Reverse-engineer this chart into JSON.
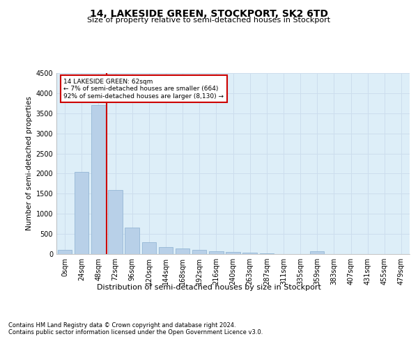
{
  "title": "14, LAKESIDE GREEN, STOCKPORT, SK2 6TD",
  "subtitle": "Size of property relative to semi-detached houses in Stockport",
  "xlabel": "Distribution of semi-detached houses by size in Stockport",
  "ylabel": "Number of semi-detached properties",
  "footnote1": "Contains HM Land Registry data © Crown copyright and database right 2024.",
  "footnote2": "Contains public sector information licensed under the Open Government Licence v3.0.",
  "annotation_line1": "14 LAKESIDE GREEN: 62sqm",
  "annotation_line2": "← 7% of semi-detached houses are smaller (664)",
  "annotation_line3": "92% of semi-detached houses are larger (8,130) →",
  "bar_color": "#b8d0e8",
  "bar_edge_color": "#8ab0d0",
  "vline_color": "#cc0000",
  "annotation_box_color": "#cc0000",
  "grid_color": "#ccdded",
  "bg_color": "#ddeef8",
  "categories": [
    "0sqm",
    "24sqm",
    "48sqm",
    "72sqm",
    "96sqm",
    "120sqm",
    "144sqm",
    "168sqm",
    "192sqm",
    "216sqm",
    "240sqm",
    "263sqm",
    "287sqm",
    "311sqm",
    "335sqm",
    "359sqm",
    "383sqm",
    "407sqm",
    "431sqm",
    "455sqm",
    "479sqm"
  ],
  "values": [
    100,
    2050,
    3700,
    1600,
    650,
    290,
    175,
    145,
    110,
    75,
    50,
    30,
    22,
    0,
    0,
    70,
    0,
    0,
    0,
    0,
    0
  ],
  "ylim": [
    0,
    4500
  ],
  "yticks": [
    0,
    500,
    1000,
    1500,
    2000,
    2500,
    3000,
    3500,
    4000,
    4500
  ],
  "vline_bin_index": 2.58,
  "title_fontsize": 10,
  "subtitle_fontsize": 8,
  "xlabel_fontsize": 8,
  "ylabel_fontsize": 7.5,
  "tick_fontsize": 7,
  "annot_fontsize": 6.5,
  "footnote_fontsize": 6
}
